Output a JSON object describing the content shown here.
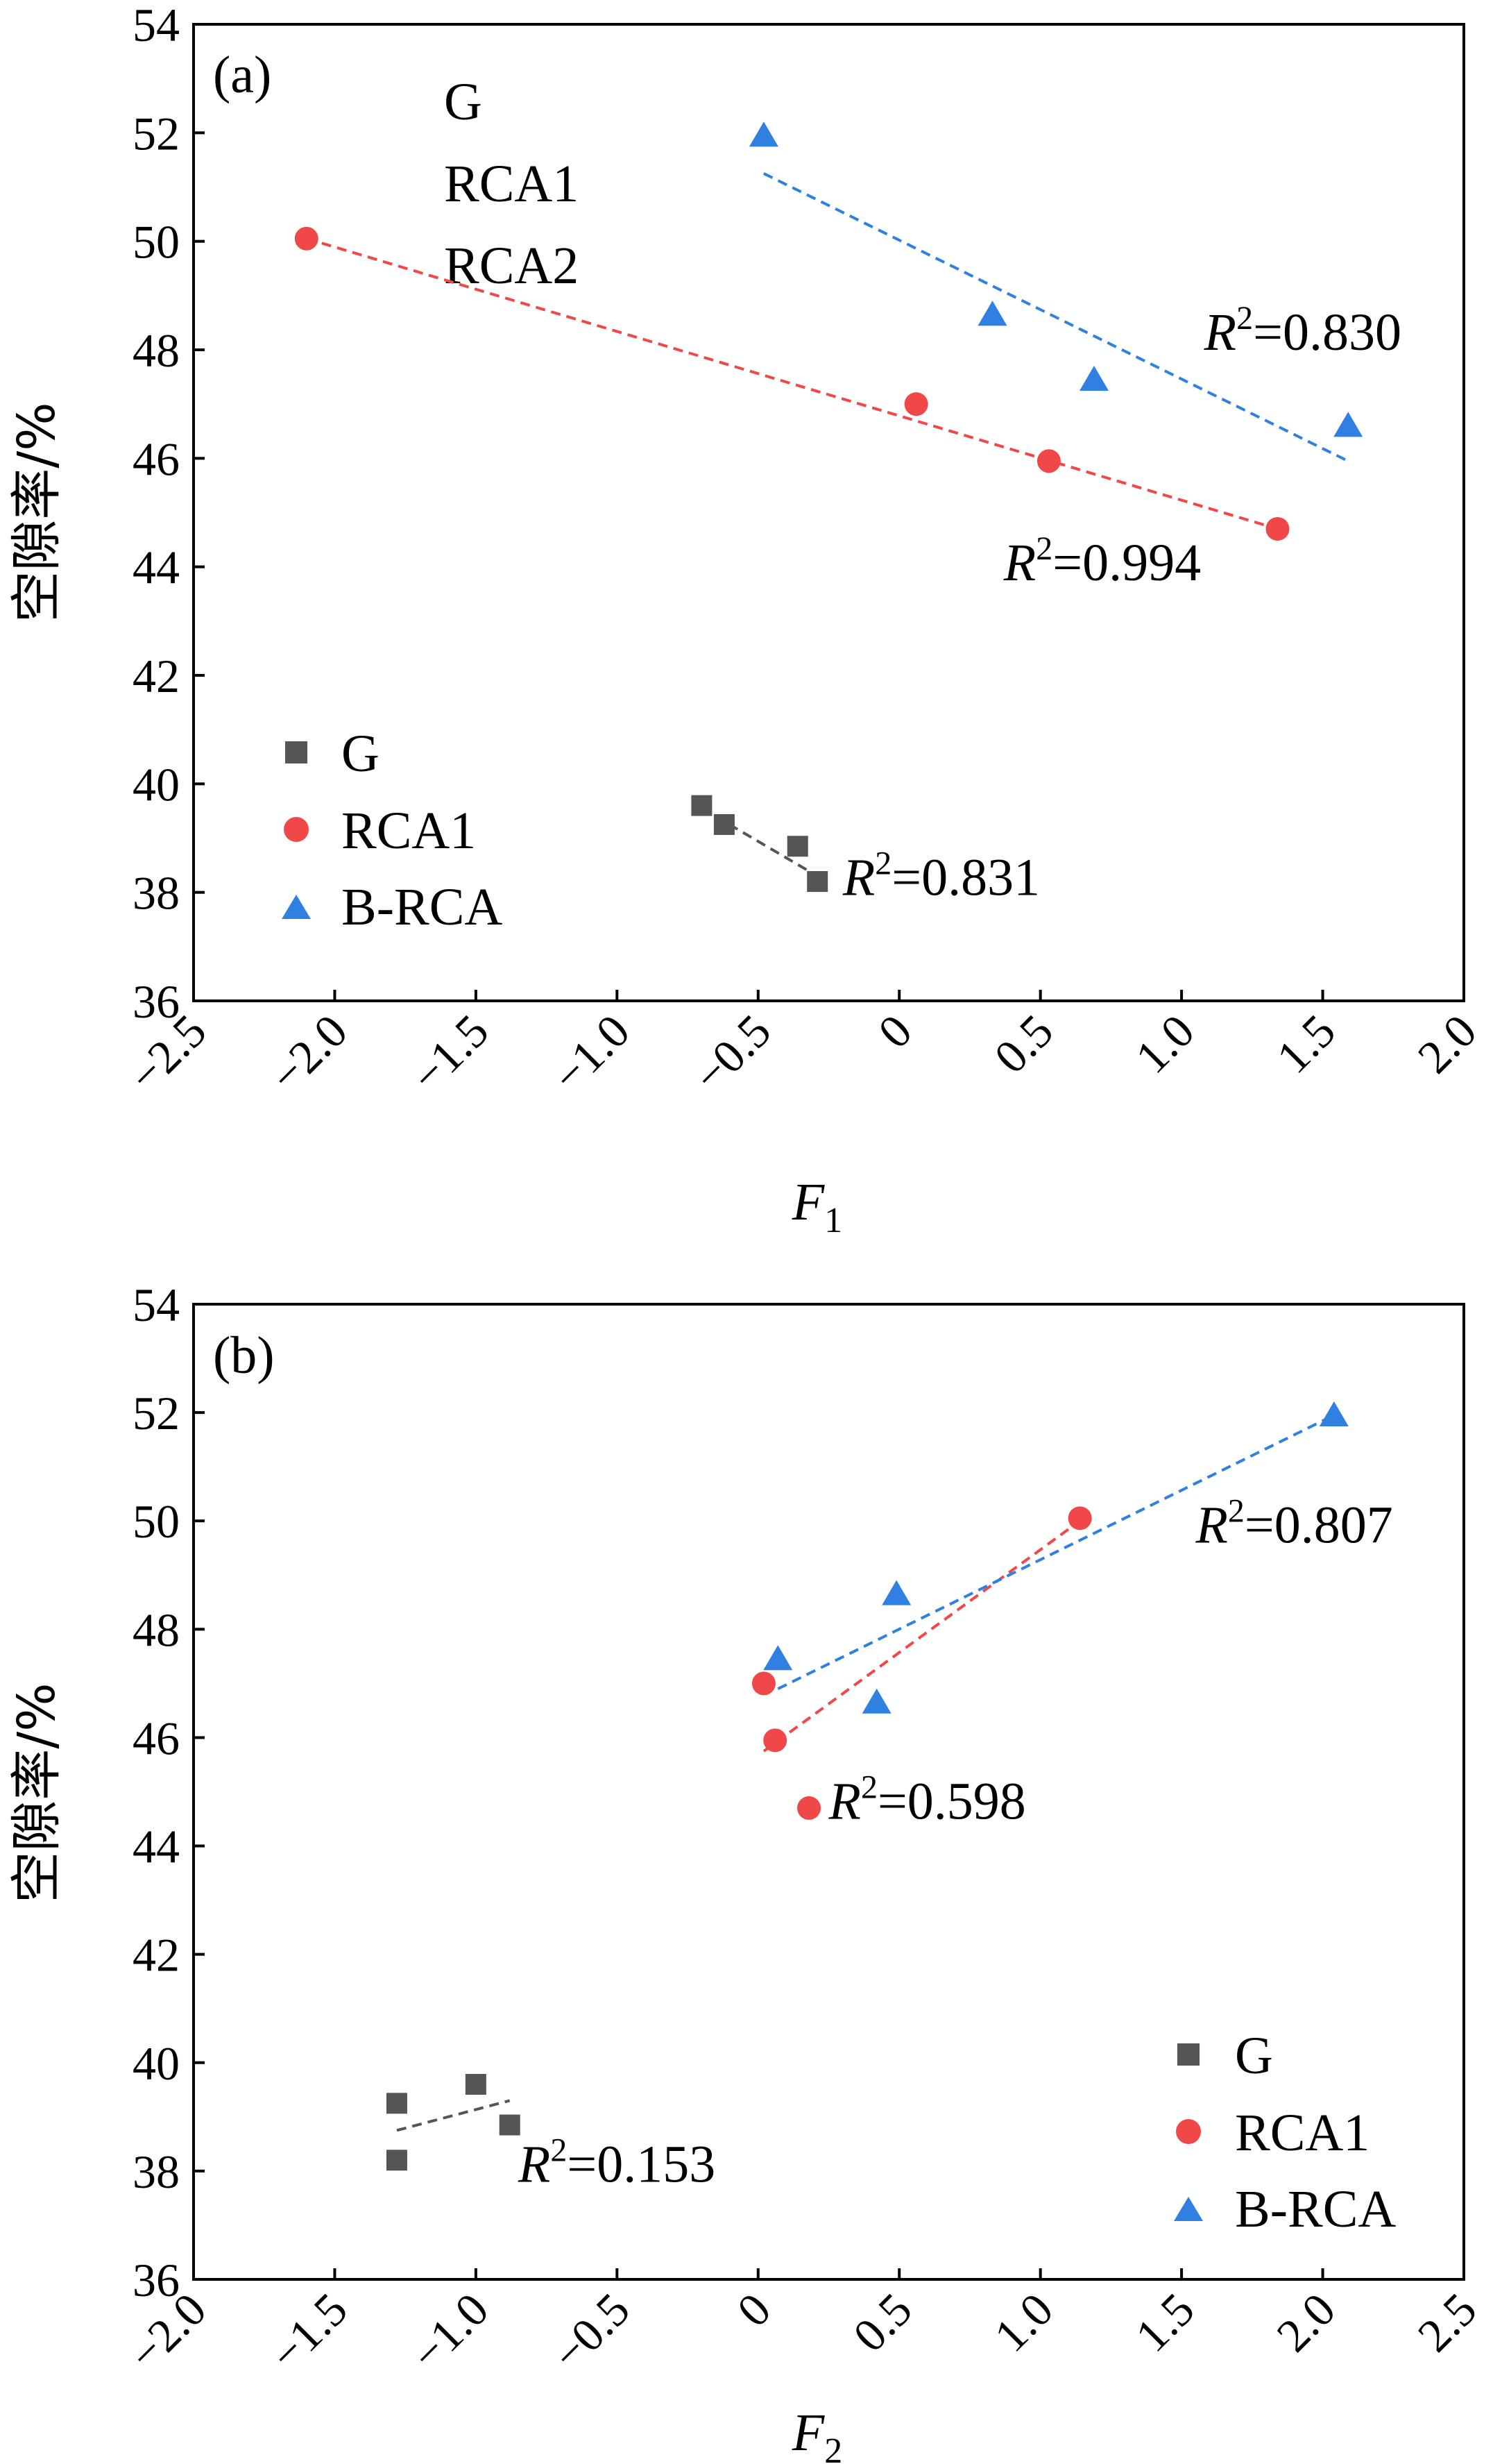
{
  "chart_data": [
    {
      "type": "scatter",
      "panel_label": "(a)",
      "xlabel": "F",
      "xlabel_sub": "1",
      "ylabel": "空隙率/%",
      "xlim": [
        -2.5,
        2.0
      ],
      "ylim": [
        36,
        54
      ],
      "xticks": [
        "−2.5",
        "−2.0",
        "−1.5",
        "−1.0",
        "−0.5",
        "0",
        "0.5",
        "1.0",
        "1.5",
        "2.0"
      ],
      "xtick_values": [
        -2.5,
        -2.0,
        -1.5,
        -1.0,
        -0.5,
        0,
        0.5,
        1.0,
        1.5,
        2.0
      ],
      "yticks": [
        "36",
        "38",
        "40",
        "42",
        "44",
        "46",
        "48",
        "50",
        "52",
        "54"
      ],
      "ytick_values": [
        36,
        38,
        40,
        42,
        44,
        46,
        48,
        50,
        52,
        54
      ],
      "stray_text": [
        "G",
        "RCA1",
        "RCA2"
      ],
      "legend_position": "lower-left",
      "series": [
        {
          "name": "G",
          "marker": "square",
          "color": "#555555",
          "points": [
            [
              -0.7,
              39.6
            ],
            [
              -0.62,
              39.25
            ],
            [
              -0.36,
              38.85
            ],
            [
              -0.29,
              38.2
            ]
          ],
          "fit": [
            [
              -0.7,
              39.55
            ],
            [
              -0.29,
              38.3
            ]
          ],
          "r2_text": "=0.831",
          "r2_pos": [
            -0.2,
            37.95
          ]
        },
        {
          "name": "RCA1",
          "marker": "circle",
          "color": "#f04848",
          "points": [
            [
              -2.1,
              50.05
            ],
            [
              0.06,
              47.0
            ],
            [
              0.53,
              45.95
            ],
            [
              1.34,
              44.7
            ]
          ],
          "fit": [
            [
              -2.1,
              50.05
            ],
            [
              1.34,
              44.7
            ]
          ],
          "r2_text": "=0.994",
          "r2_pos": [
            0.37,
            43.75
          ]
        },
        {
          "name": "B-RCA",
          "marker": "triangle",
          "color": "#2f80e0",
          "points": [
            [
              -0.48,
              51.95
            ],
            [
              0.33,
              48.65
            ],
            [
              0.69,
              47.45
            ],
            [
              1.59,
              46.6
            ]
          ],
          "fit": [
            [
              -0.48,
              51.25
            ],
            [
              1.59,
              45.95
            ]
          ],
          "r2_text": "=0.830",
          "r2_pos": [
            1.08,
            48.0
          ]
        }
      ]
    },
    {
      "type": "scatter",
      "panel_label": "(b)",
      "xlabel": "F",
      "xlabel_sub": "2",
      "ylabel": "空隙率/%",
      "xlim": [
        -2.0,
        2.5
      ],
      "ylim": [
        36,
        54
      ],
      "xticks": [
        "−2.0",
        "−1.5",
        "−1.0",
        "−0.5",
        "0",
        "0.5",
        "1.0",
        "1.5",
        "2.0",
        "2.5"
      ],
      "xtick_values": [
        -2.0,
        -1.5,
        -1.0,
        -0.5,
        0,
        0.5,
        1.0,
        1.5,
        2.0,
        2.5
      ],
      "yticks": [
        "36",
        "38",
        "40",
        "42",
        "44",
        "46",
        "48",
        "50",
        "52",
        "54"
      ],
      "ytick_values": [
        36,
        38,
        40,
        42,
        44,
        46,
        48,
        50,
        52,
        54
      ],
      "legend_position": "lower-right",
      "series": [
        {
          "name": "G",
          "marker": "square",
          "color": "#555555",
          "points": [
            [
              -1.28,
              39.25
            ],
            [
              -1.28,
              38.2
            ],
            [
              -1.0,
              39.6
            ],
            [
              -0.88,
              38.85
            ]
          ],
          "fit": [
            [
              -1.28,
              38.75
            ],
            [
              -0.88,
              39.3
            ]
          ],
          "r2_text": "=0.153",
          "r2_pos": [
            -0.85,
            37.8
          ]
        },
        {
          "name": "RCA1",
          "marker": "circle",
          "color": "#f04848",
          "points": [
            [
              0.02,
              47.0
            ],
            [
              0.06,
              45.95
            ],
            [
              0.18,
              44.7
            ],
            [
              1.14,
              50.05
            ]
          ],
          "fit": [
            [
              0.02,
              45.75
            ],
            [
              1.14,
              50.0
            ]
          ],
          "r2_text": "=0.598",
          "r2_pos": [
            0.25,
            44.5
          ]
        },
        {
          "name": "B-RCA",
          "marker": "triangle",
          "color": "#2f80e0",
          "points": [
            [
              0.07,
              47.45
            ],
            [
              0.49,
              48.65
            ],
            [
              0.42,
              46.65
            ],
            [
              2.04,
              51.95
            ]
          ],
          "fit": [
            [
              0.07,
              46.9
            ],
            [
              2.04,
              51.95
            ]
          ],
          "r2_text": "=0.807",
          "r2_pos": [
            1.55,
            49.6
          ]
        }
      ]
    }
  ]
}
